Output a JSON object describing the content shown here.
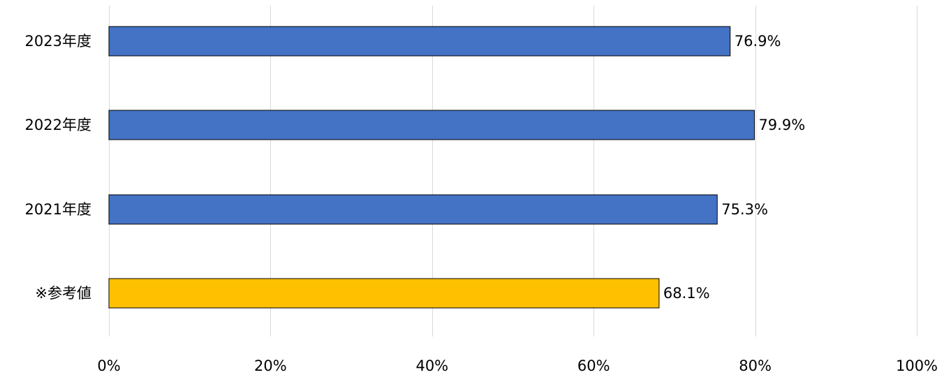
{
  "chart_data": {
    "type": "bar",
    "orientation": "horizontal",
    "categories": [
      "2023年度",
      "2022年度",
      "2021年度",
      "※参考値"
    ],
    "values": [
      76.9,
      79.9,
      75.3,
      68.1
    ],
    "value_labels": [
      "76.9%",
      "79.9%",
      "75.3%",
      "68.1%"
    ],
    "bar_colors": [
      "#4472c4",
      "#4472c4",
      "#4472c4",
      "#ffc000"
    ],
    "xlim": [
      0,
      100
    ],
    "x_ticks": [
      0,
      20,
      40,
      60,
      80,
      100
    ],
    "x_tick_labels": [
      "0%",
      "20%",
      "40%",
      "60%",
      "80%",
      "100%"
    ],
    "grid": "vertical",
    "legend": "none"
  }
}
